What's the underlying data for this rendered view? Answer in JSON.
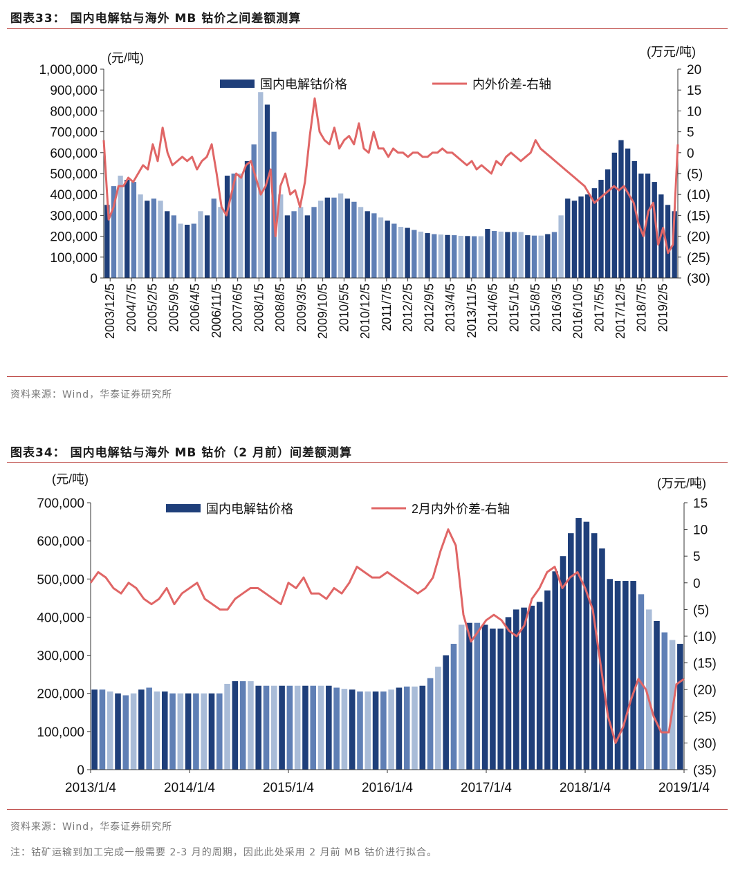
{
  "figure1": {
    "title": "图表33：   国内电解钴与海外 MB 钴价之间差额测算",
    "source": "资料来源：Wind，华泰证券研究所",
    "chart_data": {
      "type": "bar+line",
      "left_unit": "(元/吨)",
      "right_unit": "(万元/吨)",
      "left_ticks": [
        "1,000,000",
        "900,000",
        "800,000",
        "700,000",
        "600,000",
        "500,000",
        "400,000",
        "300,000",
        "200,000",
        "100,000",
        "0"
      ],
      "right_ticks": [
        "20",
        "15",
        "10",
        "5",
        "0",
        "(5)",
        "(10)",
        "(15)",
        "(20)",
        "(25)",
        "(30)"
      ],
      "ylim_left": [
        0,
        1000000
      ],
      "ylim_right": [
        -30,
        20
      ],
      "x_ticks": [
        "2003/12/5",
        "2004/7/5",
        "2005/2/5",
        "2005/9/5",
        "2006/4/5",
        "2006/11/5",
        "2007/6/5",
        "2008/1/5",
        "2008/8/5",
        "2009/3/5",
        "2009/10/5",
        "2010/5/5",
        "2010/12/5",
        "2011/7/5",
        "2012/2/5",
        "2012/9/5",
        "2013/4/5",
        "2013/11/5",
        "2014/6/5",
        "2015/1/5",
        "2015/8/5",
        "2016/3/5",
        "2016/10/5",
        "2017/5/5",
        "2017/12/5",
        "2018/7/5",
        "2019/2/5"
      ],
      "series": [
        {
          "name": "国内电解钴价格",
          "kind": "bar",
          "color": "#1f3f7a",
          "values": [
            350000,
            440000,
            490000,
            470000,
            460000,
            400000,
            370000,
            380000,
            370000,
            320000,
            300000,
            260000,
            255000,
            260000,
            320000,
            300000,
            380000,
            340000,
            490000,
            500000,
            500000,
            560000,
            640000,
            890000,
            830000,
            700000,
            400000,
            300000,
            320000,
            340000,
            300000,
            340000,
            370000,
            385000,
            385000,
            405000,
            380000,
            365000,
            340000,
            320000,
            310000,
            290000,
            275000,
            260000,
            245000,
            240000,
            230000,
            222000,
            215000,
            210000,
            208000,
            206000,
            205000,
            202000,
            201000,
            200000,
            200000,
            235000,
            225000,
            222000,
            220000,
            220000,
            220000,
            205000,
            203000,
            203000,
            210000,
            220000,
            300000,
            380000,
            370000,
            390000,
            400000,
            430000,
            470000,
            520000,
            600000,
            660000,
            620000,
            560000,
            500000,
            500000,
            460000,
            400000,
            350000,
            320000
          ]
        },
        {
          "name": "内外价差-右轴",
          "kind": "line",
          "color": "#e06666",
          "values": [
            3,
            -16,
            -13,
            -8,
            -8,
            -6,
            -7,
            -5,
            -3,
            -4,
            2,
            -2,
            6,
            0,
            -3,
            -2,
            -1,
            -2,
            -1,
            -4,
            -2,
            -1,
            2,
            -5,
            -13,
            -15,
            -10,
            -5,
            -6,
            -3,
            -2,
            -6,
            -10,
            -8,
            -4,
            -20,
            -8,
            -5,
            -10,
            -9,
            -13,
            -7,
            4,
            13,
            5,
            3,
            2,
            6,
            1,
            3,
            4,
            2,
            7,
            1,
            0,
            5,
            1,
            1,
            -1,
            1,
            0,
            0,
            -1,
            0,
            0,
            -1,
            -1,
            0,
            0,
            1,
            0,
            0,
            -1,
            -2,
            -3,
            -2,
            -4,
            -3,
            -4,
            -5,
            -2,
            -3,
            -1,
            0,
            -1,
            -2,
            -1,
            0,
            3,
            1,
            0,
            -1,
            -2,
            -3,
            -4,
            -5,
            -6,
            -7,
            -8,
            -10,
            -12,
            -11,
            -10,
            -9,
            -8,
            -9,
            -8,
            -10,
            -12,
            -17,
            -20,
            -14,
            -12,
            -22,
            -18,
            -24,
            -22,
            2
          ]
        }
      ]
    }
  },
  "figure2": {
    "title": "图表34：   国内电解钴与海外 MB 钴价（2 月前）间差额测算",
    "source": "资料来源：Wind，华泰证券研究所",
    "note": "注：钴矿运输到加工完成一般需要 2-3 月的周期，因此此处采用 2 月前 MB 钴价进行拟合。",
    "chart_data": {
      "type": "bar+line",
      "left_unit": "(元/吨)",
      "right_unit": "(万元/吨)",
      "left_ticks": [
        "700,000",
        "600,000",
        "500,000",
        "400,000",
        "300,000",
        "200,000",
        "100,000",
        "0"
      ],
      "right_ticks": [
        "15",
        "10",
        "5",
        "0",
        "(5)",
        "(10)",
        "(15)",
        "(20)",
        "(25)",
        "(30)",
        "(35)"
      ],
      "ylim_left": [
        0,
        700000
      ],
      "ylim_right": [
        -35,
        15
      ],
      "x_ticks": [
        "2013/1/4",
        "2014/1/4",
        "2015/1/4",
        "2016/1/4",
        "2017/1/4",
        "2018/1/4",
        "2019/1/4"
      ],
      "series": [
        {
          "name": "国内电解钴价格",
          "kind": "bar",
          "color": "#1f3f7a",
          "values": [
            210000,
            210000,
            205000,
            200000,
            195000,
            200000,
            210000,
            215000,
            205000,
            205000,
            200000,
            200000,
            200000,
            200000,
            200000,
            200000,
            200000,
            225000,
            232000,
            232000,
            232000,
            220000,
            220000,
            220000,
            220000,
            220000,
            220000,
            220000,
            220000,
            220000,
            220000,
            215000,
            212000,
            210000,
            205000,
            205000,
            205000,
            205000,
            210000,
            215000,
            218000,
            218000,
            220000,
            240000,
            270000,
            300000,
            330000,
            380000,
            385000,
            385000,
            380000,
            370000,
            370000,
            400000,
            420000,
            425000,
            430000,
            440000,
            470000,
            520000,
            560000,
            620000,
            660000,
            650000,
            620000,
            580000,
            500000,
            495000,
            495000,
            495000,
            460000,
            420000,
            390000,
            360000,
            340000,
            330000
          ]
        },
        {
          "name": "2月内外价差-右轴",
          "kind": "line",
          "color": "#e06666",
          "values": [
            0,
            2,
            1,
            -1,
            -2,
            0,
            -1,
            -3,
            -4,
            -3,
            -1,
            -4,
            -2,
            -1,
            0,
            -3,
            -4,
            -5,
            -5,
            -3,
            -2,
            -1,
            -1,
            -2,
            -3,
            -4,
            0,
            -1,
            1,
            -2,
            -2,
            -3,
            -1,
            -2,
            0,
            3,
            2,
            1,
            1,
            2,
            1,
            0,
            -1,
            -2,
            -1,
            1,
            6,
            10,
            7,
            -6,
            -11,
            -9,
            -7,
            -6,
            -7,
            -9,
            -10,
            -8,
            -3,
            -1,
            2,
            3,
            -1,
            1,
            2,
            -1,
            -5,
            -15,
            -25,
            -30,
            -27,
            -22,
            -18,
            -20,
            -25,
            -28,
            -28,
            -19,
            -18
          ]
        }
      ]
    }
  }
}
